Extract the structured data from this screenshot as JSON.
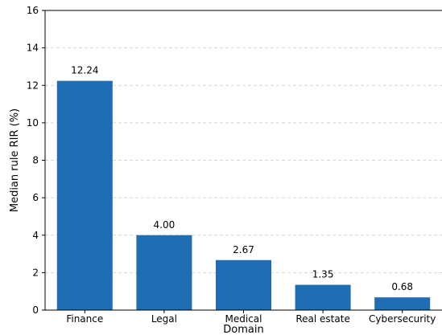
{
  "chart_data": {
    "type": "bar",
    "title": "",
    "xlabel": "Domain",
    "ylabel": "Median rule RIR (%)",
    "categories": [
      "Finance",
      "Legal",
      "Medical",
      "Real estate",
      "Cybersecurity"
    ],
    "values": [
      12.24,
      4.0,
      2.67,
      1.35,
      0.68
    ],
    "value_labels": [
      "12.24",
      "4.00",
      "2.67",
      "1.35",
      "0.68"
    ],
    "ylim": [
      0,
      16
    ],
    "yticks": [
      0,
      2,
      4,
      6,
      8,
      10,
      12,
      14,
      16
    ],
    "ytick_labels": [
      "0",
      "2",
      "4",
      "6",
      "8",
      "10",
      "12",
      "14",
      "16"
    ],
    "grid": true,
    "grid_axis": "y",
    "bar_color": "#1f6db3"
  }
}
